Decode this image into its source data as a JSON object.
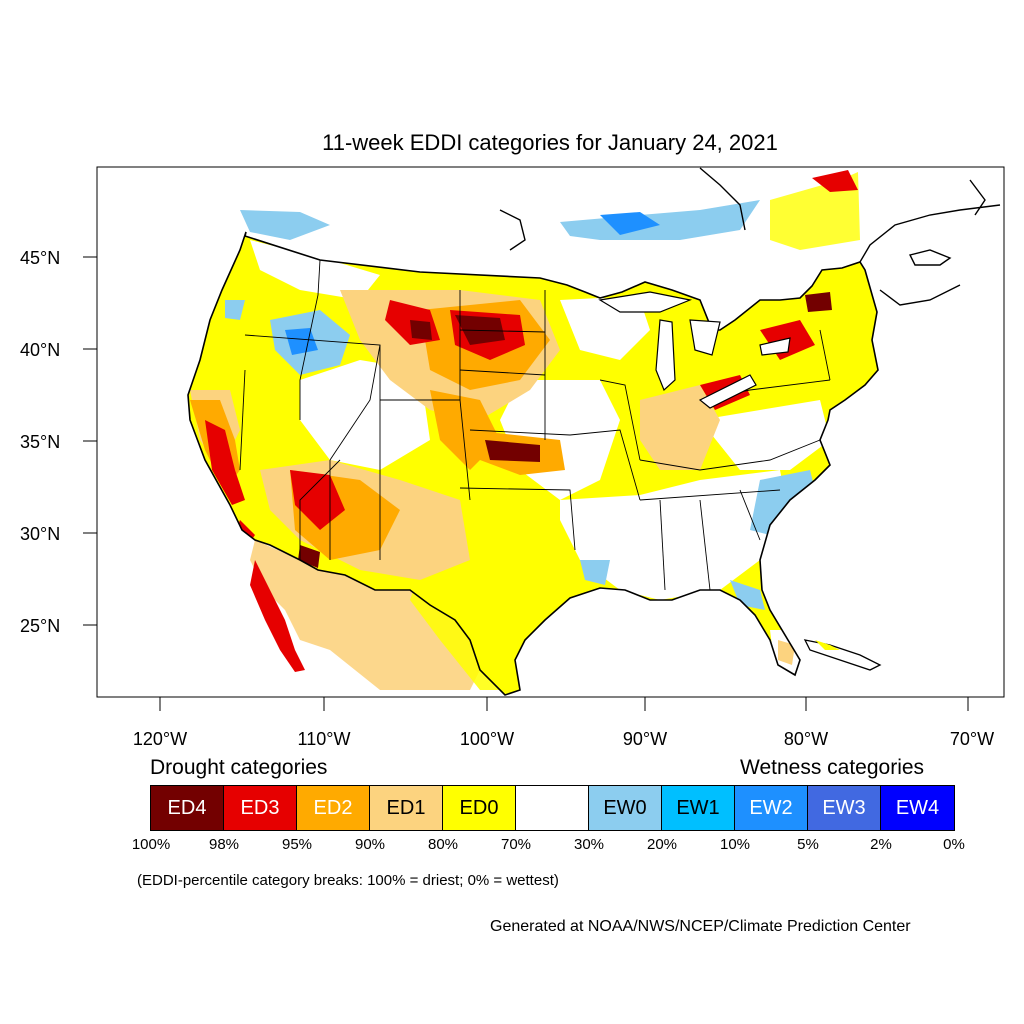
{
  "title": "11-week EDDI categories for January 24, 2021",
  "axes": {
    "lat_labels": [
      "45°N",
      "40°N",
      "35°N",
      "30°N",
      "25°N"
    ],
    "lon_labels": [
      "120°W",
      "110°W",
      "100°W",
      "90°W",
      "80°W",
      "70°W"
    ]
  },
  "legend": {
    "drought_heading": "Drought categories",
    "wetness_heading": "Wetness categories",
    "categories": [
      {
        "label": "ED4",
        "color": "#730000",
        "text_color": "#ffffff"
      },
      {
        "label": "ED3",
        "color": "#e60000",
        "text_color": "#ffffff"
      },
      {
        "label": "ED2",
        "color": "#ffaa00",
        "text_color": "#ffffff"
      },
      {
        "label": "ED1",
        "color": "#fcd37f",
        "text_color": "#000000"
      },
      {
        "label": "ED0",
        "color": "#ffff00",
        "text_color": "#000000"
      },
      {
        "label": "",
        "color": "#ffffff",
        "text_color": "#000000"
      },
      {
        "label": "EW0",
        "color": "#8ccdef",
        "text_color": "#000000"
      },
      {
        "label": "EW1",
        "color": "#00bfff",
        "text_color": "#000000"
      },
      {
        "label": "EW2",
        "color": "#1e90ff",
        "text_color": "#ffffff"
      },
      {
        "label": "EW3",
        "color": "#4169e1",
        "text_color": "#ffffff"
      },
      {
        "label": "EW4",
        "color": "#0000ff",
        "text_color": "#ffffff"
      }
    ],
    "percentiles": [
      "100%",
      "98%",
      "95%",
      "90%",
      "80%",
      "70%",
      "30%",
      "20%",
      "10%",
      "5%",
      "2%",
      "0%"
    ]
  },
  "note": "(EDDI-percentile category breaks: 100% = driest; 0% = wettest)",
  "credit": "Generated at NOAA/NWS/NCEP/Climate Prediction Center"
}
